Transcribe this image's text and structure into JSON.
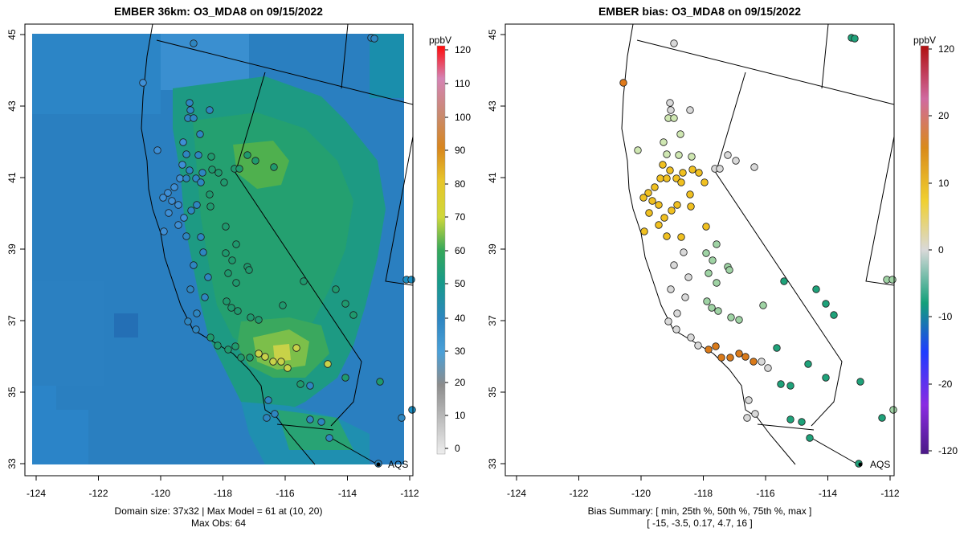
{
  "colors": {
    "map_low": "#2e86c1",
    "map_mid": "#1f9a6e",
    "map_high": "#c9d24a",
    "bias_neg": "#1fa27a",
    "bias_zero": "#d9d9d9",
    "bias_pos": "#f0c020",
    "bias_high": "#d97a1a"
  },
  "left": {
    "title": "EMBER 36km: O3_MDA8 on 09/15/2022",
    "legend_unit": "ppbV",
    "legend_ticks": [
      "120",
      "110",
      "100",
      "90",
      "80",
      "70",
      "60",
      "50",
      "40",
      "30",
      "20",
      "10",
      "0"
    ],
    "caption_line1": "Domain size: 37x32 | Max Model = 61 at (10, 20)",
    "caption_line2": "Max Obs: 64",
    "aqs_label": "AQS",
    "x_ticks": [
      "-124",
      "-122",
      "-120",
      "-118",
      "-116",
      "-114",
      "-112"
    ],
    "y_ticks": [
      "33",
      "35",
      "37",
      "39",
      "41",
      "43",
      "45"
    ]
  },
  "right": {
    "title": "EMBER bias: O3_MDA8 on 09/15/2022",
    "legend_unit": "ppbV",
    "legend_ticks": [
      "120",
      "20",
      "10",
      "0",
      "-10",
      "-20",
      "-120"
    ],
    "caption_line1": "Bias Summary: [ min, 25th %, 50th %, 75th %, max ]",
    "caption_line2": "[ -15,   -3.5,   0.17,   4.7,   16 ]",
    "aqs_label": "AQS",
    "x_ticks": [
      "-124",
      "-122",
      "-120",
      "-118",
      "-116",
      "-114",
      "-112"
    ],
    "y_ticks": [
      "33",
      "35",
      "37",
      "39",
      "41",
      "43",
      "45"
    ]
  }
}
